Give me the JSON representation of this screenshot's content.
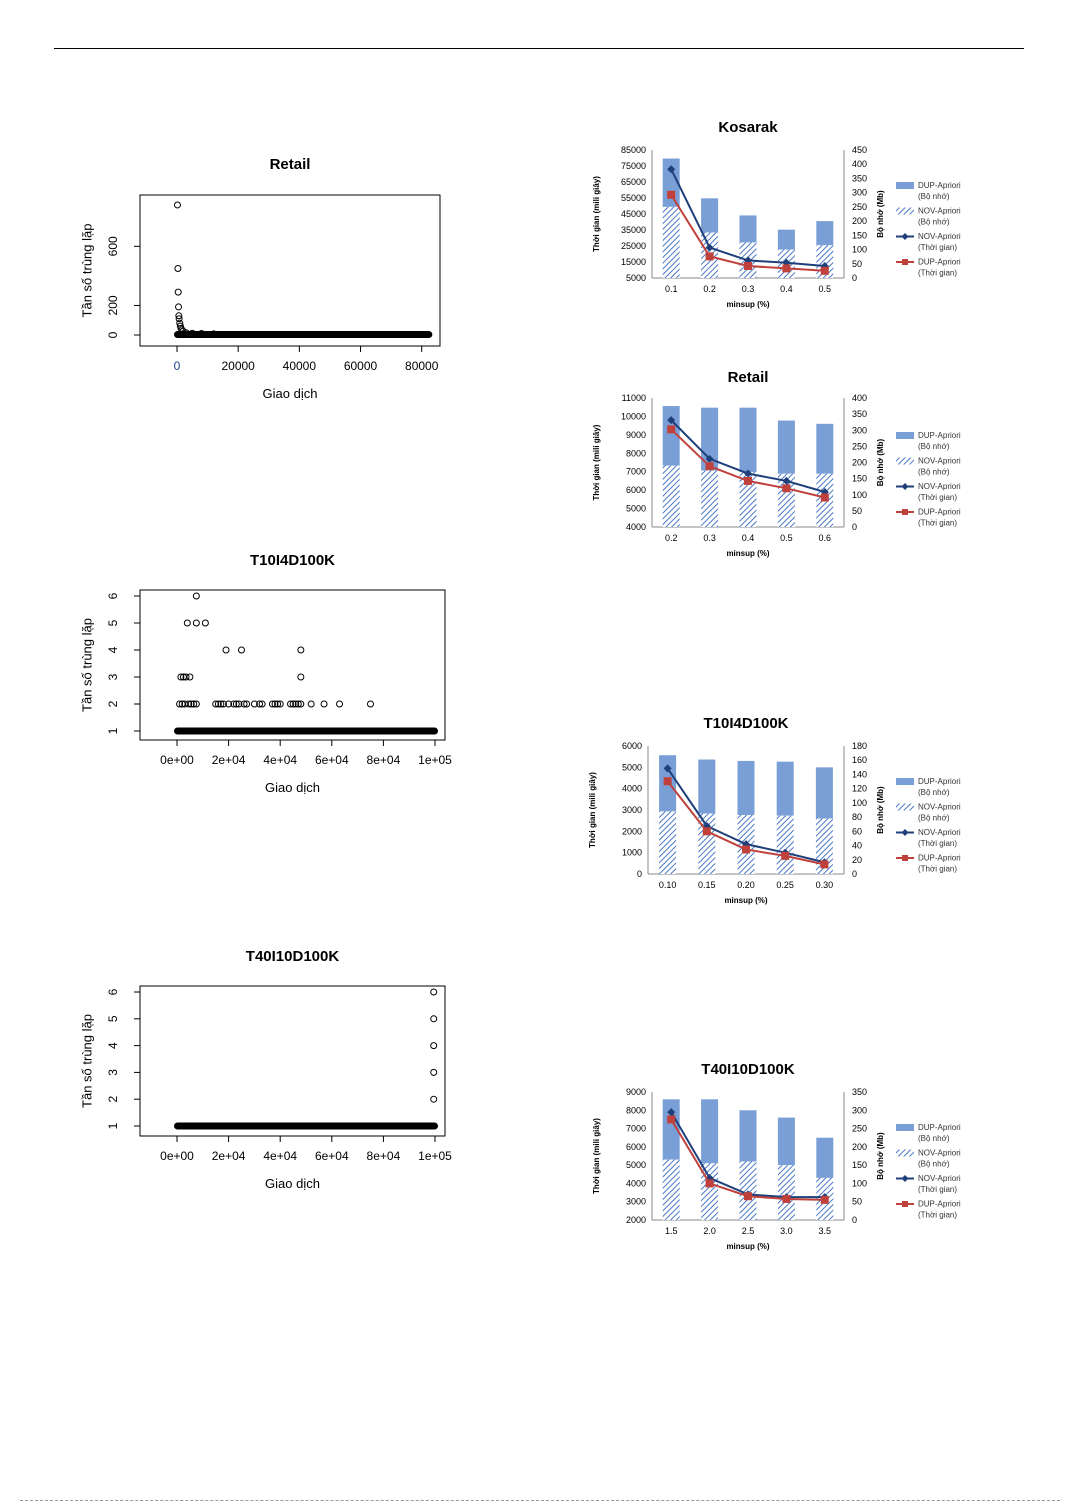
{
  "chart_data": [
    {
      "id": "r-retail",
      "type": "scatter",
      "title": "Retail",
      "xlabel": "Giao dịch",
      "ylabel": "Tần số trùng lặp",
      "xlim": [
        0,
        85000
      ],
      "ylim": [
        0,
        900
      ],
      "xticks": [
        0,
        20000,
        40000,
        60000,
        80000
      ],
      "xtick_labels": [
        "0",
        "20000",
        "40000",
        "60000",
        "80000"
      ],
      "yticks": [
        0,
        200,
        600
      ],
      "ytick_labels": [
        "0",
        "200",
        "600"
      ],
      "points": [
        [
          150,
          880
        ],
        [
          300,
          450
        ],
        [
          400,
          290
        ],
        [
          500,
          190
        ],
        [
          600,
          130
        ],
        [
          700,
          110
        ],
        [
          900,
          80
        ],
        [
          1100,
          60
        ],
        [
          1300,
          45
        ],
        [
          1600,
          35
        ],
        [
          2000,
          25
        ],
        [
          3000,
          15
        ],
        [
          5000,
          12
        ],
        [
          8000,
          10
        ],
        [
          12000,
          8
        ]
      ],
      "base_band": {
        "from": 0,
        "to": 82500,
        "value": 3
      }
    },
    {
      "id": "r-t10",
      "type": "scatter",
      "title": "T10I4D100K",
      "xlabel": "Giao dịch",
      "ylabel": "Tần số trùng lặp",
      "xlim": [
        0,
        100000
      ],
      "ylim": [
        1,
        6
      ],
      "xticks": [
        0,
        20000,
        40000,
        60000,
        80000,
        100000
      ],
      "xtick_labels": [
        "0e+00",
        "2e+04",
        "4e+04",
        "6e+04",
        "8e+04",
        "1e+05"
      ],
      "yticks": [
        1,
        2,
        3,
        4,
        5,
        6
      ],
      "ytick_labels": [
        "1",
        "2",
        "3",
        "4",
        "5",
        "6"
      ],
      "points": [
        [
          7500,
          6
        ],
        [
          4000,
          5
        ],
        [
          7500,
          5
        ],
        [
          11000,
          5
        ],
        [
          19000,
          4
        ],
        [
          25000,
          4
        ],
        [
          48000,
          4
        ],
        [
          1500,
          3
        ],
        [
          2500,
          3
        ],
        [
          3500,
          3
        ],
        [
          5000,
          3
        ],
        [
          48000,
          3
        ],
        [
          1000,
          2
        ],
        [
          2000,
          2
        ],
        [
          3000,
          2
        ],
        [
          4500,
          2
        ],
        [
          5500,
          2
        ],
        [
          6500,
          2
        ],
        [
          7500,
          2
        ],
        [
          15000,
          2
        ],
        [
          16000,
          2
        ],
        [
          17000,
          2
        ],
        [
          18000,
          2
        ],
        [
          20000,
          2
        ],
        [
          22000,
          2
        ],
        [
          23000,
          2
        ],
        [
          24000,
          2
        ],
        [
          26000,
          2
        ],
        [
          27000,
          2
        ],
        [
          30000,
          2
        ],
        [
          32000,
          2
        ],
        [
          33000,
          2
        ],
        [
          37000,
          2
        ],
        [
          38000,
          2
        ],
        [
          39000,
          2
        ],
        [
          40000,
          2
        ],
        [
          44000,
          2
        ],
        [
          45000,
          2
        ],
        [
          46000,
          2
        ],
        [
          47000,
          2
        ],
        [
          48000,
          2
        ],
        [
          52000,
          2
        ],
        [
          57000,
          2
        ],
        [
          63000,
          2
        ],
        [
          75000,
          2
        ]
      ],
      "base_band": {
        "from": 0,
        "to": 100000,
        "value": 1
      }
    },
    {
      "id": "r-t40",
      "type": "scatter",
      "title": "T40I10D100K",
      "xlabel": "Giao dịch",
      "ylabel": "Tần số trùng lặp",
      "xlim": [
        0,
        100000
      ],
      "ylim": [
        1,
        6
      ],
      "xticks": [
        0,
        20000,
        40000,
        60000,
        80000,
        100000
      ],
      "xtick_labels": [
        "0e+00",
        "2e+04",
        "4e+04",
        "6e+04",
        "8e+04",
        "1e+05"
      ],
      "yticks": [
        1,
        2,
        3,
        4,
        5,
        6
      ],
      "ytick_labels": [
        "1",
        "2",
        "3",
        "4",
        "5",
        "6"
      ],
      "points": [
        [
          99500,
          6
        ],
        [
          99500,
          5
        ],
        [
          99500,
          4
        ],
        [
          99500,
          3
        ],
        [
          99500,
          2
        ]
      ],
      "base_band": {
        "from": 0,
        "to": 100000,
        "value": 1
      }
    },
    {
      "id": "e-kosarak",
      "type": "bar",
      "title": "Kosarak",
      "xlabel": "minsup (%)",
      "ylabel": "Thời gian (mili giây)",
      "y2label": "Bộ nhớ (Mb)",
      "categories": [
        "0.1",
        "0.2",
        "0.3",
        "0.4",
        "0.5"
      ],
      "ylim": [
        5000,
        85000
      ],
      "yticks": [
        5000,
        15000,
        25000,
        35000,
        45000,
        55000,
        65000,
        75000,
        85000
      ],
      "ytick_labels": [
        "5000",
        "15000",
        "25000",
        "35000",
        "45000",
        "55000",
        "65000",
        "75000",
        "85000"
      ],
      "y2lim": [
        0,
        450
      ],
      "y2ticks": [
        0,
        50,
        100,
        150,
        200,
        250,
        300,
        350,
        400,
        450
      ],
      "y2tick_labels": [
        "0",
        "50",
        "100",
        "150",
        "200",
        "250",
        "300",
        "350",
        "400",
        "450"
      ],
      "series": [
        {
          "name": "DUP-Apriori (Bộ nhớ)",
          "axis": "right",
          "kind": "bar-solid",
          "values": [
            420,
            280,
            220,
            170,
            200
          ]
        },
        {
          "name": "NOV-Apriori (Bộ nhớ)",
          "axis": "right",
          "kind": "bar-hatch",
          "values": [
            250,
            160,
            125,
            100,
            115
          ]
        },
        {
          "name": "NOV-Apriori (Thời gian)",
          "axis": "left",
          "kind": "line-diamond",
          "values": [
            73000,
            24000,
            16000,
            14500,
            12500
          ]
        },
        {
          "name": "DUP-Apriori (Thời gian)",
          "axis": "left",
          "kind": "line-square",
          "values": [
            57000,
            18500,
            12500,
            11000,
            9500
          ]
        }
      ]
    },
    {
      "id": "e-retail",
      "type": "bar",
      "title": "Retail",
      "xlabel": "minsup (%)",
      "ylabel": "Thời gian (mili giây)",
      "y2label": "Bộ nhớ (Mb)",
      "categories": [
        "0.2",
        "0.3",
        "0.4",
        "0.5",
        "0.6"
      ],
      "ylim": [
        4000,
        11000
      ],
      "yticks": [
        4000,
        5000,
        6000,
        7000,
        8000,
        9000,
        10000,
        11000
      ],
      "ytick_labels": [
        "4000",
        "5000",
        "6000",
        "7000",
        "8000",
        "9000",
        "10000",
        "11000"
      ],
      "y2lim": [
        0,
        400
      ],
      "y2ticks": [
        0,
        50,
        100,
        150,
        200,
        250,
        300,
        350,
        400
      ],
      "y2tick_labels": [
        "0",
        "50",
        "100",
        "150",
        "200",
        "250",
        "300",
        "350",
        "400"
      ],
      "series": [
        {
          "name": "DUP-Apriori (Bộ nhớ)",
          "axis": "right",
          "kind": "bar-solid",
          "values": [
            375,
            370,
            370,
            330,
            320
          ]
        },
        {
          "name": "NOV-Apriori (Bộ nhớ)",
          "axis": "right",
          "kind": "bar-hatch",
          "values": [
            190,
            175,
            170,
            165,
            165
          ]
        },
        {
          "name": "NOV-Apriori (Thời gian)",
          "axis": "left",
          "kind": "line-diamond",
          "values": [
            9800,
            7700,
            6900,
            6500,
            5900
          ]
        },
        {
          "name": "DUP-Apriori (Thời gian)",
          "axis": "left",
          "kind": "line-square",
          "values": [
            9300,
            7300,
            6500,
            6100,
            5600
          ]
        }
      ]
    },
    {
      "id": "e-t10",
      "type": "bar",
      "title": "T10I4D100K",
      "xlabel": "minsup (%)",
      "ylabel": "Thời gian (mili giây)",
      "y2label": "Bộ nhớ (Mb)",
      "categories": [
        "0.10",
        "0.15",
        "0.20",
        "0.25",
        "0.30"
      ],
      "ylim": [
        0,
        6000
      ],
      "yticks": [
        0,
        1000,
        2000,
        3000,
        4000,
        5000,
        6000
      ],
      "ytick_labels": [
        "0",
        "1000",
        "2000",
        "3000",
        "4000",
        "5000",
        "6000"
      ],
      "y2lim": [
        0,
        180
      ],
      "y2ticks": [
        0,
        20,
        40,
        60,
        80,
        100,
        120,
        140,
        160,
        180
      ],
      "y2tick_labels": [
        "0",
        "20",
        "40",
        "60",
        "80",
        "100",
        "120",
        "140",
        "160",
        "180"
      ],
      "series": [
        {
          "name": "DUP-Apriori (Bộ nhớ)",
          "axis": "right",
          "kind": "bar-solid",
          "values": [
            167,
            161,
            159,
            158,
            150
          ]
        },
        {
          "name": "NOV-Apriori (Bộ nhớ)",
          "axis": "right",
          "kind": "bar-hatch",
          "values": [
            88,
            85,
            83,
            82,
            78
          ]
        },
        {
          "name": "NOV-Apriori (Thời gian)",
          "axis": "left",
          "kind": "line-diamond",
          "values": [
            4950,
            2250,
            1400,
            1000,
            550
          ]
        },
        {
          "name": "DUP-Apriori (Thời gian)",
          "axis": "left",
          "kind": "line-square",
          "values": [
            4350,
            2000,
            1150,
            850,
            450
          ]
        }
      ]
    },
    {
      "id": "e-t40",
      "type": "bar",
      "title": "T40I10D100K",
      "xlabel": "minsup (%)",
      "ylabel": "Thời gian (mili giây)",
      "y2label": "Bộ nhớ (Mb)",
      "categories": [
        "1.5",
        "2.0",
        "2.5",
        "3.0",
        "3.5"
      ],
      "ylim": [
        2000,
        9000
      ],
      "yticks": [
        2000,
        3000,
        4000,
        5000,
        6000,
        7000,
        8000,
        9000
      ],
      "ytick_labels": [
        "2000",
        "3000",
        "4000",
        "5000",
        "6000",
        "7000",
        "8000",
        "9000"
      ],
      "y2lim": [
        0,
        350
      ],
      "y2ticks": [
        0,
        50,
        100,
        150,
        200,
        250,
        300,
        350
      ],
      "y2tick_labels": [
        "0",
        "50",
        "100",
        "150",
        "200",
        "250",
        "300",
        "350"
      ],
      "series": [
        {
          "name": "DUP-Apriori (Bộ nhớ)",
          "axis": "right",
          "kind": "bar-solid",
          "values": [
            330,
            330,
            300,
            280,
            225
          ]
        },
        {
          "name": "NOV-Apriori (Bộ nhớ)",
          "axis": "right",
          "kind": "bar-hatch",
          "values": [
            165,
            155,
            160,
            150,
            115
          ]
        },
        {
          "name": "NOV-Apriori (Thời gian)",
          "axis": "left",
          "kind": "line-diamond",
          "values": [
            7900,
            4300,
            3400,
            3250,
            3250
          ]
        },
        {
          "name": "DUP-Apriori (Thời gian)",
          "axis": "left",
          "kind": "line-square",
          "values": [
            7500,
            4000,
            3300,
            3150,
            3100
          ]
        }
      ]
    }
  ],
  "legend": [
    {
      "name": "DUP-Apriori",
      "sub": "(Bộ nhớ)",
      "kind": "bar-solid"
    },
    {
      "name": "NOV-Apriori",
      "sub": "(Bộ nhớ)",
      "kind": "bar-hatch"
    },
    {
      "name": "NOV-Apriori",
      "sub": "(Thời gian)",
      "kind": "line-diamond"
    },
    {
      "name": "DUP-Apriori",
      "sub": "(Thời gian)",
      "kind": "line-square"
    }
  ],
  "colors": {
    "bar_solid": "#7a9fd6",
    "bar_hatch": "#4a78c4",
    "line_nov": "#1f3f7a",
    "line_dup": "#c0413c",
    "r_points": "#000000"
  }
}
